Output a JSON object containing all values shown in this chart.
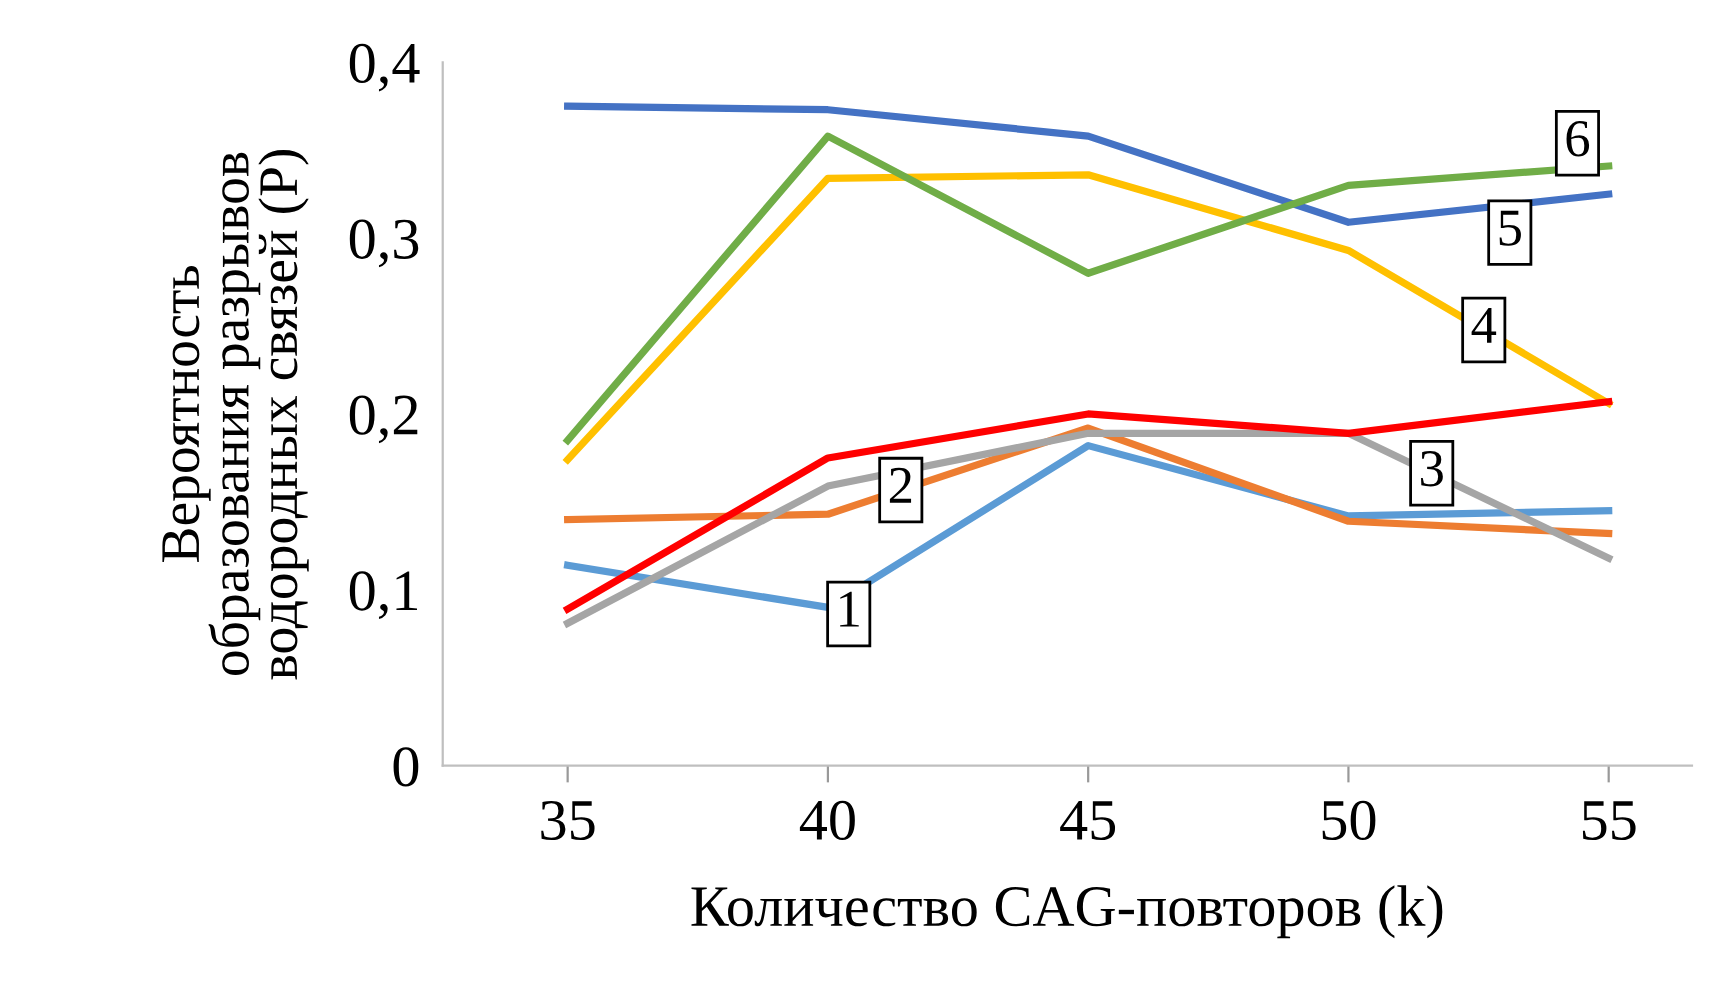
{
  "chart_data": {
    "type": "line",
    "xlabel": "Количество CAG-повторов (k)",
    "ylabel": "Вероятность\nобразования разрывов\nводородных связей (P)",
    "x": [
      35,
      40,
      45,
      50,
      55
    ],
    "xlim": [
      32.6,
      56.6
    ],
    "xticks": [
      35,
      40,
      45,
      50,
      55
    ],
    "ylim": [
      0,
      0.4
    ],
    "yticks": [
      {
        "value": 0,
        "label": "0"
      },
      {
        "value": 0.1,
        "label": "0,1"
      },
      {
        "value": 0.2,
        "label": "0,2"
      },
      {
        "value": 0.3,
        "label": "0,3"
      },
      {
        "value": 0.4,
        "label": "0,4"
      }
    ],
    "grid": false,
    "legend": false,
    "marker": "none",
    "line_style": "solid",
    "series": [
      {
        "name": "1",
        "color": "#5b9bd5",
        "values": [
          0.114,
          0.09,
          0.182,
          0.142,
          0.145
        ]
      },
      {
        "name": "2",
        "color": "#ed7d31",
        "values": [
          0.14,
          0.143,
          0.192,
          0.139,
          0.132
        ]
      },
      {
        "name": "3",
        "color": "#a5a5a5",
        "values": [
          0.081,
          0.159,
          0.189,
          0.189,
          0.118
        ]
      },
      {
        "name": "4",
        "color": "#ffc000",
        "values": [
          0.174,
          0.334,
          0.336,
          0.293,
          0.206
        ]
      },
      {
        "name": "5",
        "color": "#4472c4",
        "values": [
          0.375,
          0.373,
          0.358,
          0.309,
          0.325
        ]
      },
      {
        "name": "6",
        "color": "#70ad47",
        "values": [
          0.185,
          0.358,
          0.28,
          0.33,
          0.341
        ]
      },
      {
        "color": "#ff0000",
        "values": [
          0.089,
          0.175,
          0.2,
          0.189,
          0.207
        ]
      }
    ]
  }
}
